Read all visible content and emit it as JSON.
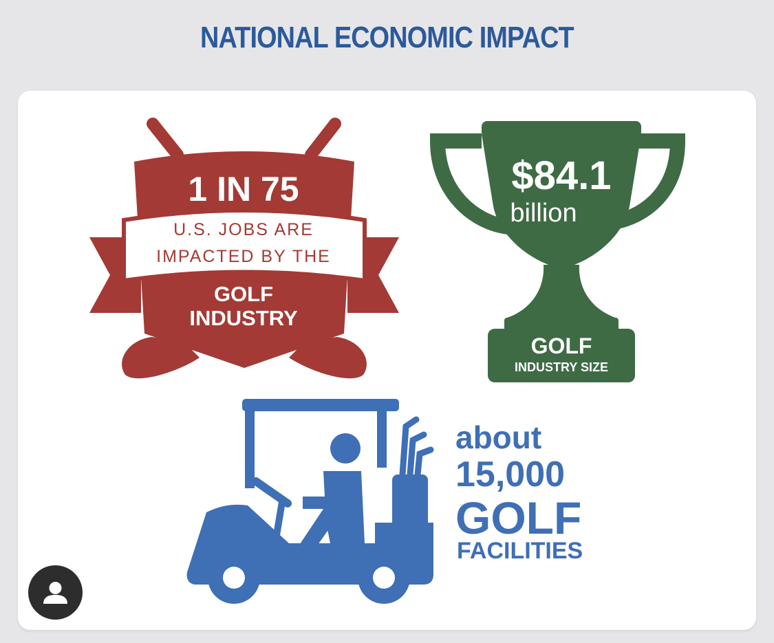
{
  "title": "NATIONAL ECONOMIC IMPACT",
  "jobs": {
    "ratio": "1 IN 75",
    "line1": "U.S. JOBS ARE",
    "line2": "IMPACTED BY THE",
    "line3": "GOLF",
    "line4": "INDUSTRY"
  },
  "trophy": {
    "amount": "$84.1",
    "unit": "billion",
    "label1": "GOLF",
    "label2": "INDUSTRY SIZE"
  },
  "facilities": {
    "line1": "about",
    "line2": "15,000",
    "line3": "GOLF",
    "line4": "FACILITIES"
  },
  "icons": {
    "avatar": "user-avatar-icon",
    "crest": "golf-crest-icon",
    "trophy": "trophy-icon",
    "cart": "golf-cart-icon"
  },
  "colors": {
    "title": "#2b5a9c",
    "red": "#a33a35",
    "green": "#3e6b44",
    "blue": "#3f6fb5"
  }
}
